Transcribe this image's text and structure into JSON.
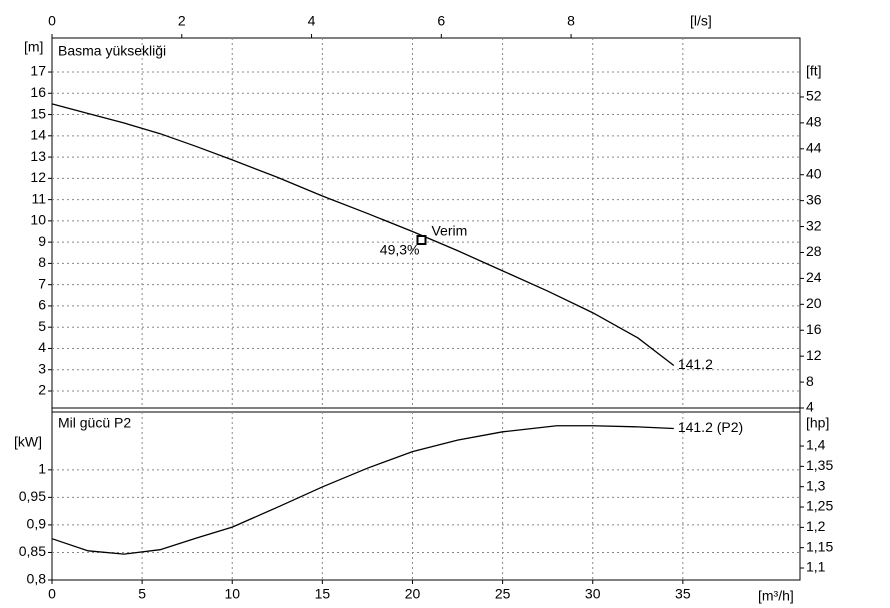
{
  "chart_data": [
    {
      "type": "line",
      "title": "Basma yüksekliği",
      "y_label": "[m]",
      "y2_label": "[ft]",
      "x2_label": "[l/s]",
      "x": [
        0,
        2,
        4,
        6,
        8,
        10,
        12.5,
        15,
        17.5,
        20,
        22.5,
        25,
        27.5,
        30,
        32.5,
        34.5
      ],
      "series": [
        {
          "name": "141.2",
          "color": "#000000",
          "values": [
            15.5,
            15.05,
            14.6,
            14.1,
            13.5,
            12.87,
            12.05,
            11.17,
            10.35,
            9.5,
            8.6,
            7.65,
            6.7,
            5.68,
            4.5,
            3.2
          ]
        }
      ],
      "operating_point": {
        "x": 20.5,
        "y": 9.1,
        "label": "Verim",
        "value_label": "49,3%"
      },
      "xlim": [
        0,
        41.5
      ],
      "x2lim": [
        0,
        11.528
      ],
      "x2ticks": [
        0,
        2,
        4,
        6,
        8
      ],
      "ylim": [
        1.2,
        18.6
      ],
      "yticks": [
        2,
        3,
        4,
        5,
        6,
        7,
        8,
        9,
        10,
        11,
        12,
        13,
        14,
        15,
        16,
        17
      ],
      "y2lim": [
        4,
        61.1
      ],
      "y2ticks": [
        4,
        8,
        12,
        16,
        20,
        24,
        28,
        32,
        36,
        40,
        44,
        48,
        52
      ],
      "grid": true
    },
    {
      "type": "line",
      "title": "Mil gücü P2",
      "y_label": "[kW]",
      "y2_label": "[hp]",
      "x_label": "[m³/h]",
      "x": [
        0,
        2,
        4,
        6,
        8,
        10,
        12.5,
        15,
        17.5,
        20,
        22.5,
        25,
        28,
        30,
        32.5,
        34.5
      ],
      "series": [
        {
          "name": "141.2 (P2)",
          "color": "#000000",
          "values": [
            0.875,
            0.853,
            0.847,
            0.855,
            0.876,
            0.896,
            0.932,
            0.969,
            1.003,
            1.033,
            1.054,
            1.069,
            1.08,
            1.08,
            1.078,
            1.075
          ]
        }
      ],
      "xlim": [
        0,
        41.5
      ],
      "xticks": [
        0,
        5,
        10,
        15,
        20,
        25,
        30,
        35
      ],
      "ylim": [
        0.8,
        1.105
      ],
      "yticks": [
        {
          "value": 0.8,
          "label": "0,8"
        },
        {
          "value": 0.85,
          "label": "0,85"
        },
        {
          "value": 0.9,
          "label": "0,9"
        },
        {
          "value": 0.95,
          "label": "0,95"
        },
        1
      ],
      "y2lim": [
        1.0705,
        1.4837
      ],
      "y2ticks": [
        {
          "value": 1.1,
          "label": "1,1"
        },
        {
          "value": 1.15,
          "label": "1,15"
        },
        {
          "value": 1.2,
          "label": "1,2"
        },
        {
          "value": 1.25,
          "label": "1,25"
        },
        {
          "value": 1.3,
          "label": "1,3"
        },
        {
          "value": 1.35,
          "label": "1,35"
        },
        {
          "value": 1.4,
          "label": "1,4"
        }
      ],
      "grid": true
    }
  ]
}
